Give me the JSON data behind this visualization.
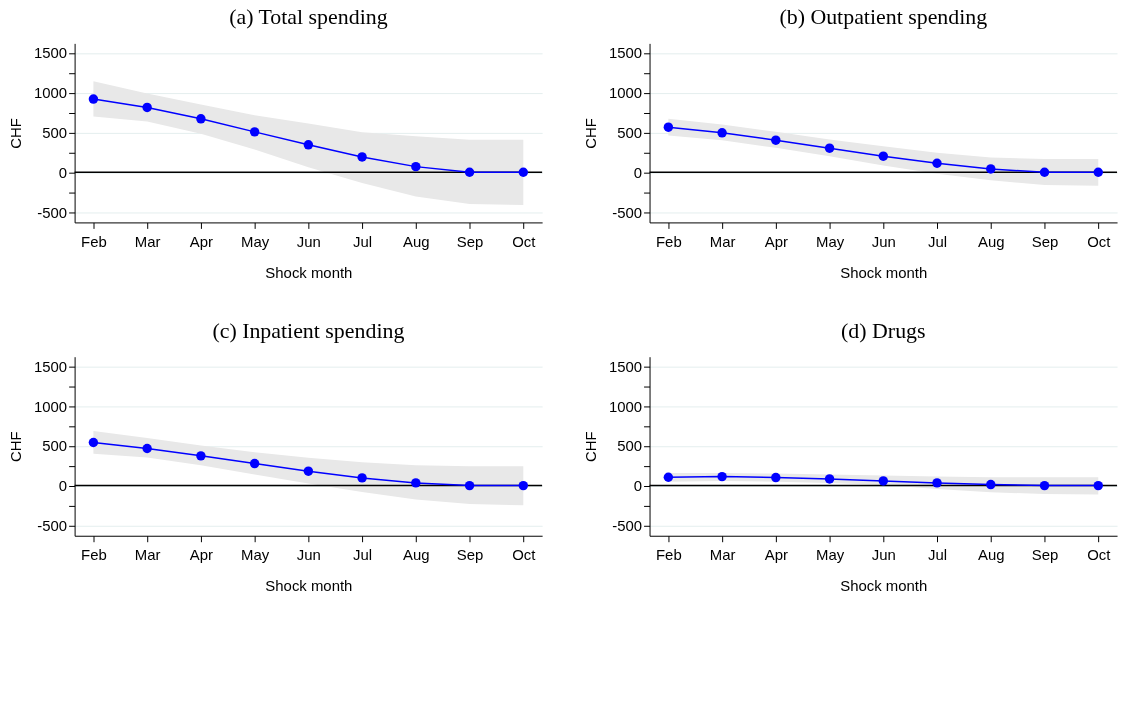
{
  "chart_data": [
    {
      "type": "line",
      "title": "(a) Total spending",
      "xlabel": "Shock month",
      "ylabel": "CHF",
      "categories": [
        "Feb",
        "Mar",
        "Apr",
        "May",
        "Jun",
        "Jul",
        "Aug",
        "Sep",
        "Oct"
      ],
      "ylim": [
        -630,
        1620
      ],
      "yticks": [
        -500,
        {
          "value": -250,
          "label": null
        },
        0,
        {
          "value": 250,
          "label": null
        },
        500,
        {
          "value": 750,
          "label": null
        },
        1000,
        {
          "value": 1250,
          "label": null
        },
        1500
      ],
      "grid": "y",
      "marker": "circle",
      "line_style": "solid",
      "ref_lines": [
        {
          "axis": "y",
          "value": 0,
          "color": "#000000"
        }
      ],
      "series": [
        {
          "color": "#0000ff",
          "values": [
            920,
            815,
            672,
            508,
            345,
            193,
            71,
            0,
            0
          ],
          "lower": [
            702,
            639,
            483,
            286,
            63,
            -134,
            -303,
            -399,
            -412
          ],
          "upper": [
            1143,
            990,
            853,
            718,
            613,
            504,
            454,
            408,
            408
          ]
        }
      ]
    },
    {
      "type": "line",
      "title": "(b) Outpatient spending",
      "xlabel": "Shock month",
      "ylabel": "CHF",
      "categories": [
        "Feb",
        "Mar",
        "Apr",
        "May",
        "Jun",
        "Jul",
        "Aug",
        "Sep",
        "Oct"
      ],
      "ylim": [
        -630,
        1620
      ],
      "yticks": [
        -500,
        {
          "value": -250,
          "label": null
        },
        0,
        {
          "value": 250,
          "label": null
        },
        500,
        {
          "value": 750,
          "label": null
        },
        1000,
        {
          "value": 1250,
          "label": null
        },
        1500
      ],
      "grid": "y",
      "marker": "circle",
      "line_style": "solid",
      "ref_lines": [
        {
          "axis": "y",
          "value": 0,
          "color": "#000000"
        }
      ],
      "series": [
        {
          "color": "#0000ff",
          "values": [
            567,
            496,
            403,
            303,
            202,
            113,
            42,
            0,
            0
          ],
          "lower": [
            462,
            403,
            307,
            202,
            84,
            -17,
            -101,
            -160,
            -168
          ],
          "upper": [
            672,
            601,
            508,
            412,
            328,
            244,
            185,
            168,
            168
          ]
        }
      ]
    },
    {
      "type": "line",
      "title": "(c) Inpatient spending",
      "xlabel": "Shock month",
      "ylabel": "CHF",
      "categories": [
        "Feb",
        "Mar",
        "Apr",
        "May",
        "Jun",
        "Jul",
        "Aug",
        "Sep",
        "Oct"
      ],
      "ylim": [
        -630,
        1620
      ],
      "yticks": [
        -500,
        {
          "value": -250,
          "label": null
        },
        0,
        {
          "value": 250,
          "label": null
        },
        500,
        {
          "value": 750,
          "label": null
        },
        1000,
        {
          "value": 1250,
          "label": null
        },
        1500
      ],
      "grid": "y",
      "marker": "circle",
      "line_style": "solid",
      "ref_lines": [
        {
          "axis": "y",
          "value": 0,
          "color": "#000000"
        }
      ],
      "series": [
        {
          "color": "#0000ff",
          "values": [
            542,
            466,
            374,
            277,
            181,
            97,
            34,
            0,
            0
          ],
          "lower": [
            399,
            353,
            256,
            139,
            25,
            -80,
            -176,
            -231,
            -248
          ],
          "upper": [
            685,
            597,
            504,
            420,
            349,
            294,
            256,
            244,
            244
          ]
        }
      ]
    },
    {
      "type": "line",
      "title": "(d) Drugs",
      "xlabel": "Shock month",
      "ylabel": "CHF",
      "categories": [
        "Feb",
        "Mar",
        "Apr",
        "May",
        "Jun",
        "Jul",
        "Aug",
        "Sep",
        "Oct"
      ],
      "ylim": [
        -630,
        1620
      ],
      "yticks": [
        -500,
        {
          "value": -250,
          "label": null
        },
        0,
        {
          "value": 250,
          "label": null
        },
        500,
        {
          "value": 750,
          "label": null
        },
        1000,
        {
          "value": 1250,
          "label": null
        },
        1500
      ],
      "grid": "y",
      "marker": "circle",
      "line_style": "solid",
      "ref_lines": [
        {
          "axis": "y",
          "value": 0,
          "color": "#000000"
        }
      ],
      "series": [
        {
          "color": "#0000ff",
          "values": [
            105,
            113,
            101,
            84,
            59,
            34,
            13,
            0,
            0
          ],
          "lower": [
            50,
            59,
            50,
            34,
            8,
            -42,
            -84,
            -105,
            -113
          ],
          "upper": [
            160,
            160,
            151,
            139,
            126,
            113,
            105,
            105,
            105
          ]
        }
      ]
    }
  ]
}
